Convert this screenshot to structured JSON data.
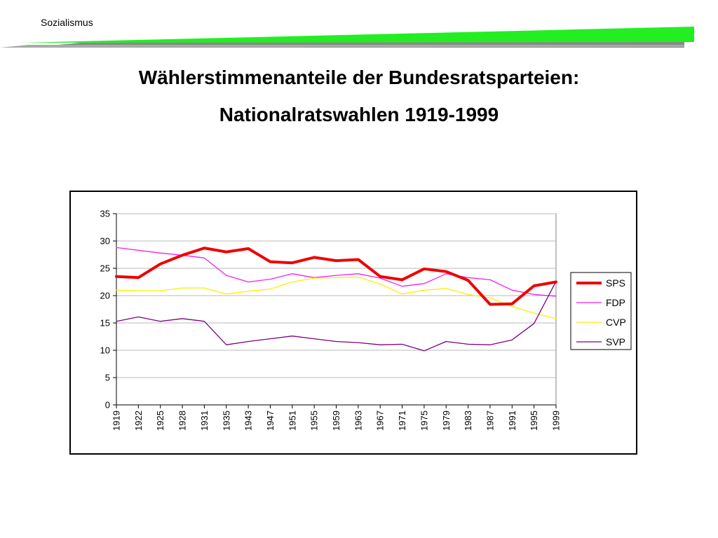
{
  "header": {
    "label": "Sozialismus"
  },
  "slide": {
    "title_line1": "Wählerstimmenanteile der Bundesratsparteien:",
    "title_line2": "Nationalratswahlen 1919-1999"
  },
  "colors": {
    "accent_bar": "#22ee22",
    "underline": "#888888"
  },
  "chart_data": {
    "type": "line",
    "title": "",
    "xlabel": "",
    "ylabel": "",
    "ylim": [
      0,
      35
    ],
    "yticks": [
      0,
      5,
      10,
      15,
      20,
      25,
      30,
      35
    ],
    "grid": true,
    "legend_position": "right",
    "categories": [
      "1919",
      "1922",
      "1925",
      "1928",
      "1931",
      "1935",
      "1943",
      "1947",
      "1951",
      "1955",
      "1959",
      "1963",
      "1967",
      "1971",
      "1975",
      "1979",
      "1983",
      "1987",
      "1991",
      "1995",
      "1999"
    ],
    "series": [
      {
        "name": "SPS",
        "color": "#ee0000",
        "width": 4,
        "values": [
          23.5,
          23.3,
          25.8,
          27.4,
          28.7,
          28.0,
          28.6,
          26.2,
          26.0,
          27.0,
          26.4,
          26.6,
          23.5,
          22.9,
          24.9,
          24.4,
          22.8,
          18.4,
          18.5,
          21.8,
          22.5
        ]
      },
      {
        "name": "FDP",
        "color": "#ee22ee",
        "width": 1.3,
        "values": [
          28.8,
          28.3,
          27.8,
          27.4,
          26.9,
          23.7,
          22.5,
          23.0,
          24.0,
          23.3,
          23.7,
          24.0,
          23.2,
          21.7,
          22.2,
          24.0,
          23.3,
          22.9,
          21.0,
          20.2,
          19.9
        ]
      },
      {
        "name": "CVP",
        "color": "#ffee00",
        "width": 1.3,
        "values": [
          21.0,
          20.9,
          20.9,
          21.4,
          21.4,
          20.3,
          20.8,
          21.2,
          22.5,
          23.2,
          23.3,
          23.4,
          22.1,
          20.3,
          21.0,
          21.3,
          20.2,
          19.6,
          18.0,
          16.8,
          15.8
        ]
      },
      {
        "name": "SVP",
        "color": "#800080",
        "width": 1.3,
        "values": [
          15.3,
          16.1,
          15.3,
          15.8,
          15.3,
          11.0,
          11.6,
          12.1,
          12.6,
          12.1,
          11.6,
          11.4,
          11.0,
          11.1,
          9.9,
          11.6,
          11.1,
          11.0,
          11.9,
          14.9,
          22.6
        ]
      }
    ]
  }
}
